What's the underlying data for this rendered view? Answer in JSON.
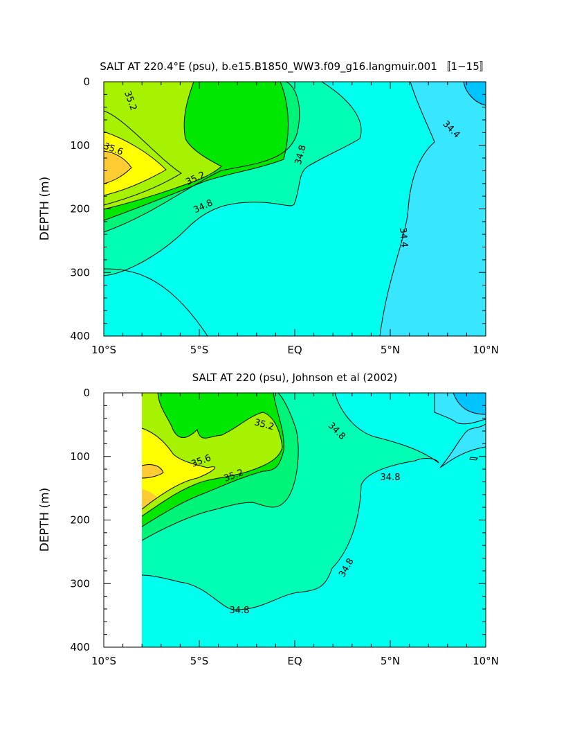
{
  "colors": {
    "lt_34_4": "#38e6ff",
    "c34_4_34_8": "#00ffee",
    "c34_8_35_0": "#00ffb4",
    "c35_0_35_2": "#00f578",
    "c35_2_35_4": "#00e800",
    "c35_4_35_6": "#a6f200",
    "c35_6_35_8": "#ffff00",
    "gt_35_8": "#ffcc33",
    "deep_blue": "#00c4ff",
    "line": "#000000"
  },
  "chart_data": [
    {
      "type": "contour",
      "title": "SALT AT 220.4°E (psu), b.e15.B1850_WW3.f09_g16.langmuir.001 〚1−15〛",
      "ylabel": "DEPTH (m)",
      "xlabel": "",
      "xlim": [
        -10,
        10
      ],
      "ylim": [
        400,
        0
      ],
      "x_ticks": [
        -10,
        -5,
        0,
        5,
        10
      ],
      "x_tick_labels": [
        "10°S",
        "5°S",
        "EQ",
        "5°N",
        "10°N"
      ],
      "y_ticks": [
        0,
        100,
        200,
        300,
        400
      ],
      "y_tick_labels": [
        "0",
        "100",
        "200",
        "300",
        "400"
      ],
      "contour_levels": [
        34.4,
        34.6,
        34.8,
        35.0,
        35.2,
        35.4,
        35.6,
        35.8
      ],
      "contour_labels": [
        {
          "text": "35.2",
          "x": -8.6,
          "y": 30,
          "rotate": 70
        },
        {
          "text": "35.6",
          "x": -9.5,
          "y": 106,
          "rotate": 20
        },
        {
          "text": "35.2",
          "x": -5.2,
          "y": 152,
          "rotate": -25
        },
        {
          "text": "34.8",
          "x": -4.8,
          "y": 196,
          "rotate": -25
        },
        {
          "text": "34.8",
          "x": 0.3,
          "y": 115,
          "rotate": -75
        },
        {
          "text": "34.4",
          "x": 8.2,
          "y": 75,
          "rotate": 45
        },
        {
          "text": "34.4",
          "x": 5.7,
          "y": 245,
          "rotate": 85
        }
      ]
    },
    {
      "type": "contour",
      "title": "SALT AT 220 (psu), Johnson et al (2002)",
      "ylabel": "DEPTH (m)",
      "xlabel": "",
      "xlim": [
        -10,
        10
      ],
      "ylim": [
        400,
        0
      ],
      "data_xlim": [
        -8,
        10
      ],
      "x_ticks": [
        -10,
        -5,
        0,
        5,
        10
      ],
      "x_tick_labels": [
        "10°S",
        "5°S",
        "EQ",
        "5°N",
        "10°N"
      ],
      "y_ticks": [
        0,
        100,
        200,
        300,
        400
      ],
      "y_tick_labels": [
        "0",
        "100",
        "200",
        "300",
        "400"
      ],
      "contour_levels": [
        34.4,
        34.6,
        34.8,
        35.0,
        35.2,
        35.4,
        35.6,
        35.8
      ],
      "contour_labels": [
        {
          "text": "35.2",
          "x": -1.6,
          "y": 50,
          "rotate": 15
        },
        {
          "text": "35.6",
          "x": -4.9,
          "y": 107,
          "rotate": -20
        },
        {
          "text": "35.2",
          "x": -3.2,
          "y": 130,
          "rotate": -20
        },
        {
          "text": "34.8",
          "x": 2.2,
          "y": 60,
          "rotate": 45
        },
        {
          "text": "34.8",
          "x": 5.0,
          "y": 133,
          "rotate": 0
        },
        {
          "text": "34.8",
          "x": 2.7,
          "y": 275,
          "rotate": -60
        },
        {
          "text": "34.8",
          "x": -2.9,
          "y": 342,
          "rotate": 0
        }
      ]
    }
  ]
}
